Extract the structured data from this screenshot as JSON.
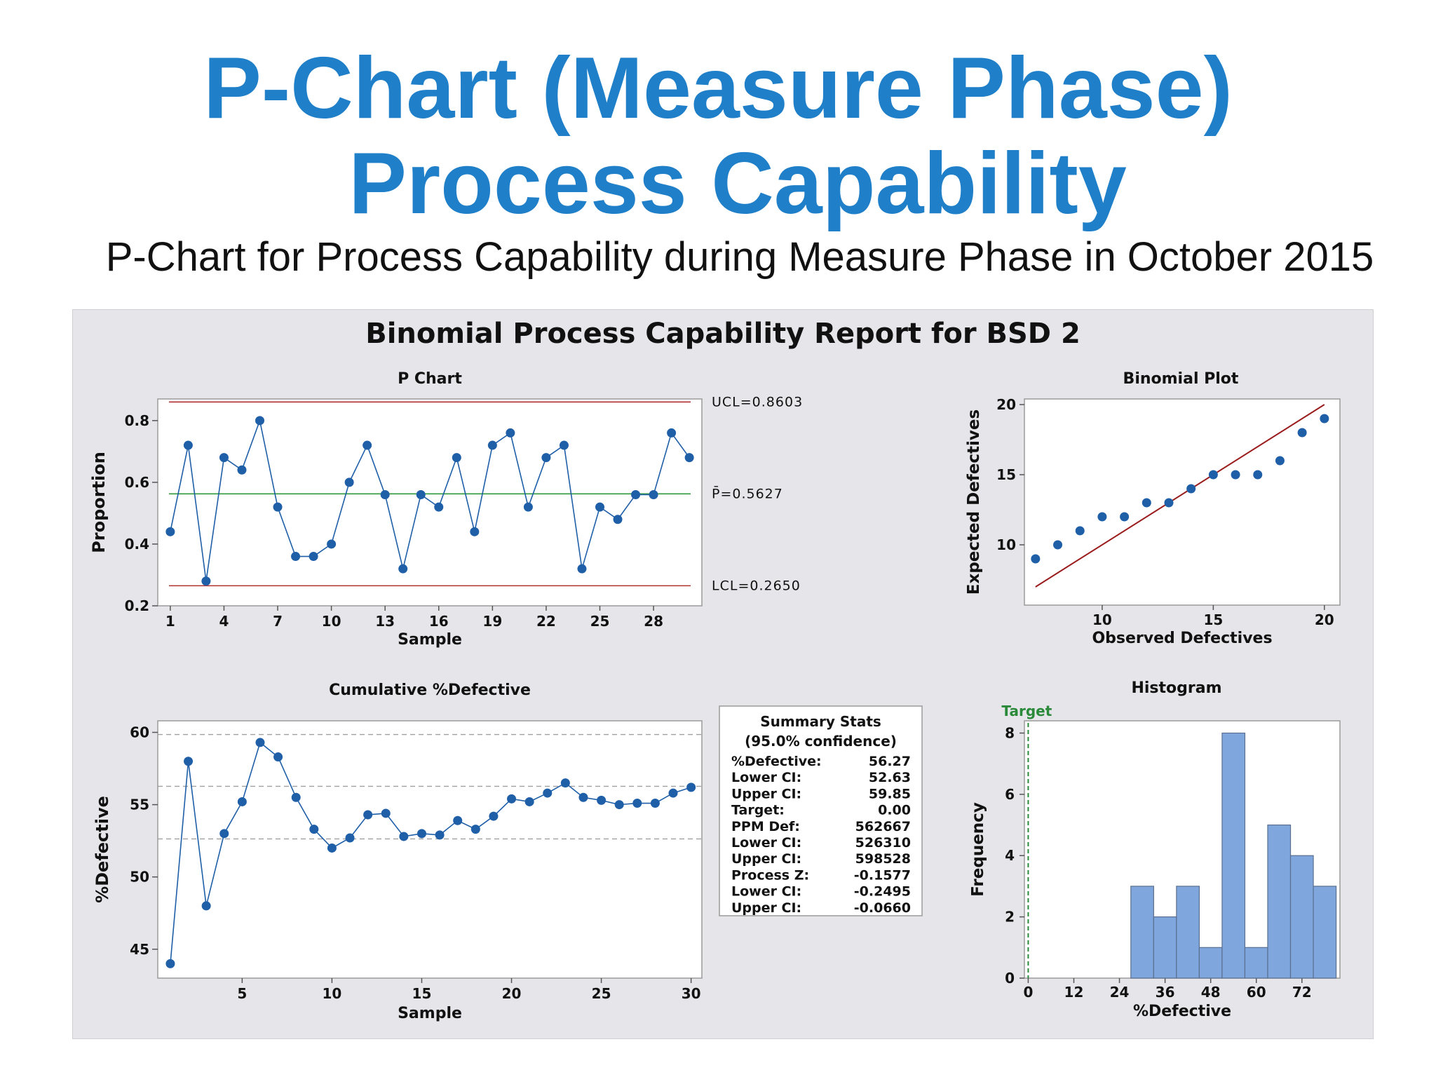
{
  "slide": {
    "title_line1": "P-Chart (Measure Phase)",
    "title_line2": "Process Capability",
    "subtitle": "P-Chart for Process Capability during Measure Phase in October 2015"
  },
  "report": {
    "title": "Binomial Process Capability Report for BSD 2",
    "accent_color": "#1f5fa8",
    "bar_color": "#7fa7dd"
  },
  "chart_data": [
    {
      "type": "line",
      "title": "P Chart",
      "xlabel": "Sample",
      "ylabel": "Proportion",
      "x_ticks": [
        1,
        4,
        7,
        10,
        13,
        16,
        19,
        22,
        25,
        28
      ],
      "y_ticks": [
        "0.2",
        "0.4",
        "0.6",
        "0.8"
      ],
      "ylim": [
        0.2,
        0.87
      ],
      "x": [
        1,
        2,
        3,
        4,
        5,
        6,
        7,
        8,
        9,
        10,
        11,
        12,
        13,
        14,
        15,
        16,
        17,
        18,
        19,
        20,
        21,
        22,
        23,
        24,
        25,
        26,
        27,
        28,
        29,
        30
      ],
      "values": [
        0.44,
        0.72,
        0.28,
        0.68,
        0.64,
        0.8,
        0.52,
        0.36,
        0.36,
        0.4,
        0.6,
        0.72,
        0.56,
        0.32,
        0.56,
        0.52,
        0.68,
        0.44,
        0.72,
        0.76,
        0.52,
        0.68,
        0.72,
        0.32,
        0.52,
        0.48,
        0.56,
        0.56,
        0.76,
        0.68
      ],
      "control_lines": [
        {
          "label": "UCL=0.8603",
          "value": 0.8603,
          "color": "#b03030"
        },
        {
          "label": "P̄=0.5627",
          "value": 0.5627,
          "color": "#2e9a3a"
        },
        {
          "label": "LCL=0.2650",
          "value": 0.265,
          "color": "#b03030"
        }
      ]
    },
    {
      "type": "scatter",
      "title": "Binomial Plot",
      "xlabel": "Observed Defectives",
      "ylabel": "Expected Defectives",
      "x_ticks": [
        "10",
        "15",
        "20"
      ],
      "y_ticks": [
        "10",
        "15",
        "20"
      ],
      "xlim": [
        6.5,
        20.7
      ],
      "ylim": [
        5.7,
        20.4
      ],
      "x": [
        7,
        8,
        9,
        10,
        11,
        12,
        13,
        14,
        15,
        16,
        17,
        18,
        19,
        20
      ],
      "values": [
        9,
        10,
        11,
        12,
        12,
        13,
        13,
        14,
        15,
        15,
        15,
        16,
        18,
        19
      ],
      "reference_line": {
        "from": [
          7,
          7
        ],
        "to": [
          20,
          20
        ],
        "color": "#9b1c1c"
      }
    },
    {
      "type": "line",
      "title": "Cumulative %Defective",
      "xlabel": "Sample",
      "ylabel": "%Defective",
      "x_ticks": [
        "5",
        "10",
        "15",
        "20",
        "25",
        "30"
      ],
      "y_ticks": [
        "45",
        "50",
        "55",
        "60"
      ],
      "ylim": [
        43,
        60.8
      ],
      "x": [
        1,
        2,
        3,
        4,
        5,
        6,
        7,
        8,
        9,
        10,
        11,
        12,
        13,
        14,
        15,
        16,
        17,
        18,
        19,
        20,
        21,
        22,
        23,
        24,
        25,
        26,
        27,
        28,
        29,
        30
      ],
      "values": [
        44.0,
        58.0,
        48.0,
        53.0,
        55.2,
        59.3,
        58.3,
        55.5,
        53.3,
        52.0,
        52.7,
        54.3,
        54.4,
        52.8,
        53.0,
        52.9,
        53.9,
        53.3,
        54.2,
        55.4,
        55.2,
        55.8,
        56.5,
        55.5,
        55.3,
        55.0,
        55.1,
        55.1,
        55.8,
        56.2
      ],
      "reference_lines": [
        59.85,
        56.27,
        52.63
      ]
    },
    {
      "type": "bar",
      "title": "Histogram",
      "xlabel": "%Defective",
      "ylabel": "Frequency",
      "x_ticks": [
        "0",
        "12",
        "24",
        "36",
        "48",
        "60",
        "72"
      ],
      "y_ticks": [
        "0",
        "2",
        "4",
        "6",
        "8"
      ],
      "xlim": [
        -1,
        82
      ],
      "ylim": [
        0,
        8.4
      ],
      "bin_edges": [
        27,
        33,
        39,
        45,
        51,
        57,
        63,
        69,
        75,
        81
      ],
      "values": [
        3,
        2,
        3,
        1,
        8,
        1,
        5,
        4,
        3
      ],
      "target": {
        "label": "Target",
        "value": 0,
        "color": "#2a8a3a"
      }
    }
  ],
  "summary_stats": {
    "title": "Summary Stats",
    "subtitle": "(95.0% confidence)",
    "rows": [
      {
        "label": "%Defective:",
        "value": "56.27"
      },
      {
        "label": "Lower CI:",
        "value": "52.63"
      },
      {
        "label": "Upper CI:",
        "value": "59.85"
      },
      {
        "label": "Target:",
        "value": "0.00"
      },
      {
        "label": "PPM Def:",
        "value": "562667"
      },
      {
        "label": "Lower CI:",
        "value": "526310"
      },
      {
        "label": "Upper CI:",
        "value": "598528"
      },
      {
        "label": "Process Z:",
        "value": "-0.1577"
      },
      {
        "label": "Lower CI:",
        "value": "-0.2495"
      },
      {
        "label": "Upper CI:",
        "value": "-0.0660"
      }
    ]
  }
}
